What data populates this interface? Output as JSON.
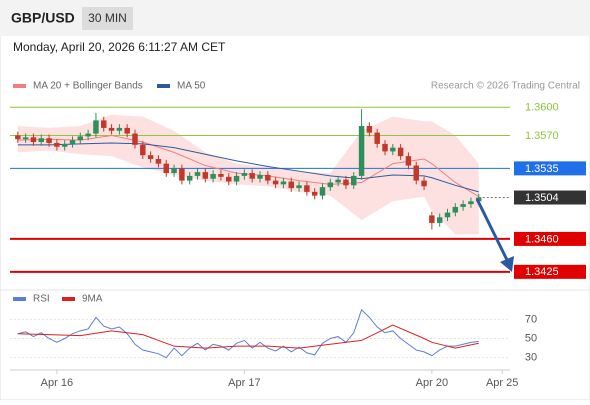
{
  "chart_data": [
    {
      "type": "candlestick",
      "title": "GBP/USD",
      "interval": "30 MIN",
      "subtitle": "Monday, April 20, 2026 6:11:27 AM CET",
      "source": "Research © 2026 Trading Central",
      "up_color": "#2f8f5b",
      "down_color": "#c0392b",
      "open": [
        1.357,
        1.3566,
        1.3568,
        1.3563,
        1.3567,
        1.3562,
        1.3558,
        1.3561,
        1.3565,
        1.3569,
        1.3572,
        1.3586,
        1.3578,
        1.3575,
        1.3578,
        1.3572,
        1.356,
        1.3549,
        1.3545,
        1.354,
        1.353,
        1.3535,
        1.3522,
        1.3527,
        1.3531,
        1.3524,
        1.3529,
        1.3526,
        1.3521,
        1.3527,
        1.353,
        1.3524,
        1.3528,
        1.3522,
        1.3518,
        1.3521,
        1.3514,
        1.3517,
        1.351,
        1.3506,
        1.3515,
        1.352,
        1.3523,
        1.3517,
        1.3527,
        1.358,
        1.3573,
        1.3561,
        1.3553,
        1.3557,
        1.3548,
        1.3538,
        1.3522,
        1.3485,
        1.3477,
        1.3483,
        1.3488,
        1.3494,
        1.3497,
        1.35
      ],
      "high": [
        1.3574,
        1.3572,
        1.3572,
        1.3571,
        1.3571,
        1.3566,
        1.3565,
        1.3569,
        1.3573,
        1.3576,
        1.3594,
        1.359,
        1.3582,
        1.3582,
        1.3582,
        1.3576,
        1.3564,
        1.3553,
        1.3549,
        1.3544,
        1.3539,
        1.3539,
        1.3531,
        1.3535,
        1.3535,
        1.3533,
        1.3533,
        1.353,
        1.3531,
        1.3534,
        1.3534,
        1.3532,
        1.3532,
        1.3526,
        1.3525,
        1.3525,
        1.3521,
        1.3521,
        1.3514,
        1.3519,
        1.3524,
        1.3527,
        1.3527,
        1.3531,
        1.3598,
        1.3584,
        1.3577,
        1.3565,
        1.3561,
        1.3561,
        1.3552,
        1.3542,
        1.3526,
        1.3489,
        1.3487,
        1.3492,
        1.3498,
        1.3501,
        1.3504,
        1.3508
      ],
      "low": [
        1.3562,
        1.3562,
        1.3559,
        1.3559,
        1.3558,
        1.3554,
        1.3554,
        1.3557,
        1.3561,
        1.3565,
        1.3568,
        1.3574,
        1.3571,
        1.3571,
        1.3568,
        1.3556,
        1.3545,
        1.3541,
        1.3536,
        1.3526,
        1.3526,
        1.3518,
        1.3518,
        1.3523,
        1.352,
        1.352,
        1.3522,
        1.3517,
        1.3517,
        1.3523,
        1.352,
        1.352,
        1.3518,
        1.3514,
        1.3514,
        1.351,
        1.351,
        1.3506,
        1.3502,
        1.3502,
        1.3511,
        1.3516,
        1.3513,
        1.3513,
        1.3523,
        1.3569,
        1.3557,
        1.3549,
        1.3549,
        1.3544,
        1.3534,
        1.3518,
        1.3512,
        1.347,
        1.3473,
        1.3479,
        1.3484,
        1.349,
        1.3493,
        1.3496
      ],
      "close": [
        1.3566,
        1.3568,
        1.3563,
        1.3567,
        1.3562,
        1.3558,
        1.3561,
        1.3565,
        1.3569,
        1.3572,
        1.3586,
        1.3578,
        1.3575,
        1.3578,
        1.3572,
        1.356,
        1.3549,
        1.3545,
        1.354,
        1.353,
        1.3535,
        1.3522,
        1.3527,
        1.3531,
        1.3524,
        1.3529,
        1.3526,
        1.3521,
        1.3527,
        1.353,
        1.3524,
        1.3528,
        1.3522,
        1.3518,
        1.3521,
        1.3514,
        1.3517,
        1.351,
        1.3506,
        1.3515,
        1.352,
        1.3523,
        1.3517,
        1.3527,
        1.358,
        1.3573,
        1.3561,
        1.3553,
        1.3557,
        1.3548,
        1.3538,
        1.3522,
        1.3516,
        1.3477,
        1.3483,
        1.3488,
        1.3494,
        1.3497,
        1.35,
        1.3504
      ],
      "series": [
        {
          "name": "MA 20 + Bollinger Bands",
          "color": "#f08080",
          "band_color": "#fde0e0",
          "x": [
            0,
            4,
            8,
            12,
            16,
            20,
            24,
            28,
            32,
            36,
            40,
            44,
            48,
            52,
            53,
            56,
            59
          ],
          "values": [
            1.3565,
            1.3566,
            1.3565,
            1.357,
            1.3563,
            1.3552,
            1.3538,
            1.353,
            1.3527,
            1.3522,
            1.3518,
            1.352,
            1.354,
            1.3545,
            1.354,
            1.352,
            1.3505
          ],
          "upper": [
            1.358,
            1.3578,
            1.358,
            1.3592,
            1.359,
            1.3575,
            1.3552,
            1.354,
            1.3536,
            1.3532,
            1.353,
            1.3575,
            1.359,
            1.3585,
            1.3585,
            1.357,
            1.354
          ],
          "lower": [
            1.3552,
            1.3554,
            1.355,
            1.3548,
            1.3536,
            1.3528,
            1.3522,
            1.3518,
            1.3516,
            1.351,
            1.3506,
            1.348,
            1.35,
            1.3505,
            1.349,
            1.3465,
            1.3465
          ]
        },
        {
          "name": "MA 50",
          "color": "#2c5aa0",
          "x": [
            0,
            4,
            8,
            12,
            16,
            20,
            24,
            28,
            32,
            36,
            40,
            44,
            48,
            52,
            53,
            56,
            59
          ],
          "values": [
            1.356,
            1.356,
            1.3561,
            1.3562,
            1.3561,
            1.3557,
            1.355,
            1.3543,
            1.3537,
            1.3532,
            1.3527,
            1.3524,
            1.3528,
            1.3527,
            1.3525,
            1.3517,
            1.351
          ]
        }
      ],
      "levels": [
        {
          "value": 1.36,
          "label": "1.3600",
          "color": "#8dc63f",
          "box": false,
          "line": "solid"
        },
        {
          "value": 1.357,
          "label": "1.3570",
          "color": "#8dc63f",
          "box": false,
          "line": "solid"
        },
        {
          "value": 1.3535,
          "label": "1.3535",
          "color": "#1e6fe8",
          "box": true,
          "line": "solid"
        },
        {
          "value": 1.3504,
          "label": "1.3504",
          "color": "#333333",
          "box": true,
          "line": "dotted"
        },
        {
          "value": 1.346,
          "label": "1.3460",
          "color": "#e00000",
          "box": true,
          "line": "solid"
        },
        {
          "value": 1.3425,
          "label": "1.3425",
          "color": "#e00000",
          "box": true,
          "line": "solid"
        }
      ],
      "xlim": [
        -1,
        63
      ],
      "ylim": [
        1.3411,
        1.3613
      ],
      "xticks": [
        {
          "value": 5,
          "label": "Apr 16"
        },
        {
          "value": 29,
          "label": "Apr 17"
        },
        {
          "value": 53,
          "label": "Apr 20"
        },
        {
          "value": 62,
          "label": "Apr 25"
        }
      ]
    },
    {
      "type": "line",
      "series": [
        {
          "name": "RSI",
          "color": "#5b7fd6",
          "x": [
            0,
            1,
            2,
            3,
            4,
            5,
            6,
            7,
            8,
            9,
            10,
            11,
            12,
            13,
            14,
            15,
            16,
            17,
            18,
            19,
            20,
            21,
            22,
            23,
            24,
            25,
            26,
            27,
            28,
            29,
            30,
            31,
            32,
            33,
            34,
            35,
            36,
            37,
            38,
            39,
            40,
            41,
            42,
            43,
            44,
            45,
            46,
            47,
            48,
            49,
            50,
            51,
            52,
            53,
            54,
            55,
            56,
            57,
            58,
            59
          ],
          "values": [
            55,
            57,
            52,
            56,
            50,
            46,
            50,
            55,
            58,
            60,
            72,
            63,
            60,
            62,
            55,
            44,
            38,
            36,
            34,
            30,
            40,
            32,
            40,
            45,
            38,
            44,
            42,
            38,
            45,
            48,
            40,
            46,
            40,
            37,
            42,
            36,
            41,
            35,
            33,
            45,
            50,
            52,
            46,
            56,
            80,
            72,
            62,
            56,
            58,
            50,
            44,
            38,
            36,
            32,
            38,
            42,
            42,
            44,
            46,
            47
          ]
        },
        {
          "name": "9MA",
          "color": "#e02020",
          "x": [
            0,
            4,
            8,
            12,
            16,
            20,
            24,
            28,
            32,
            36,
            40,
            44,
            48,
            52,
            53,
            56,
            59
          ],
          "values": [
            55,
            54,
            53,
            58,
            54,
            42,
            40,
            42,
            42,
            40,
            44,
            48,
            64,
            50,
            46,
            40,
            45
          ]
        }
      ],
      "xlim": [
        -1,
        63
      ],
      "ylim": [
        15,
        85
      ],
      "yticks": [
        30,
        50,
        70
      ]
    }
  ]
}
